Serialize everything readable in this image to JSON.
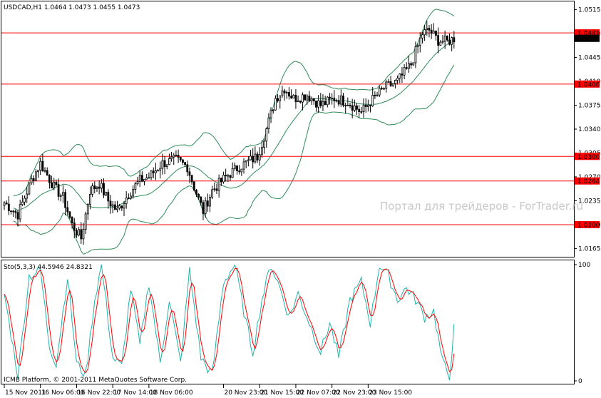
{
  "chart_data": [
    {
      "type": "candlestick",
      "header": "USDCAD,H1  1.0464 1.0473 1.0455 1.0473",
      "symbol": "USDCAD",
      "timeframe": "H1",
      "ohlc_last": {
        "open": 1.0464,
        "high": 1.0473,
        "low": 1.0455,
        "close": 1.0473
      },
      "watermark": "Портал для трейдеров - ForTrader.ru",
      "y_ticks": [
        "1.0515",
        "1.0480",
        "1.0445",
        "1.0410",
        "1.0375",
        "1.0340",
        "1.0305",
        "1.0270",
        "1.0235",
        "1.0200",
        "1.0165"
      ],
      "ylim": [
        1.0155,
        1.0525
      ],
      "horizontal_levels": [
        {
          "value": 1.0481,
          "label": "1.0481"
        },
        {
          "value": 1.0406,
          "label": "1.0406"
        },
        {
          "value": 1.03,
          "label": "1.0300"
        },
        {
          "value": 1.0264,
          "label": "1.0264"
        },
        {
          "value": 1.02,
          "label": "1.0200"
        }
      ],
      "current_price_label": "1.0473",
      "bollinger_bands": true,
      "price_anchors": [
        [
          0,
          1.0232
        ],
        [
          6,
          1.0215
        ],
        [
          12,
          1.0265
        ],
        [
          16,
          1.029
        ],
        [
          22,
          1.0255
        ],
        [
          26,
          1.024
        ],
        [
          30,
          1.02
        ],
        [
          34,
          1.018
        ],
        [
          38,
          1.025
        ],
        [
          42,
          1.026
        ],
        [
          46,
          1.0235
        ],
        [
          50,
          1.022
        ],
        [
          55,
          1.0245
        ],
        [
          60,
          1.0265
        ],
        [
          64,
          1.027
        ],
        [
          70,
          1.029
        ],
        [
          76,
          1.0295
        ],
        [
          81,
          1.0285
        ],
        [
          84,
          1.0255
        ],
        [
          88,
          1.022
        ],
        [
          92,
          1.025
        ],
        [
          98,
          1.027
        ],
        [
          104,
          1.0285
        ],
        [
          112,
          1.03
        ],
        [
          116,
          1.034
        ],
        [
          120,
          1.0385
        ],
        [
          124,
          1.04
        ],
        [
          128,
          1.0385
        ],
        [
          134,
          1.039
        ],
        [
          140,
          1.0375
        ],
        [
          146,
          1.0385
        ],
        [
          152,
          1.038
        ],
        [
          158,
          1.0365
        ],
        [
          162,
          1.038
        ],
        [
          168,
          1.04
        ],
        [
          174,
          1.041
        ],
        [
          180,
          1.0435
        ],
        [
          185,
          1.048
        ],
        [
          188,
          1.0485
        ],
        [
          192,
          1.047
        ],
        [
          196,
          1.0468
        ],
        [
          199,
          1.0473
        ]
      ]
    },
    {
      "type": "line",
      "header": "Sto(5,3,3) 44.5946 24.8321",
      "name": "Sto(5,3,3)",
      "main_value": 44.5946,
      "signal_value": 24.8321,
      "ylim": [
        0,
        100
      ],
      "y_ticks": [
        "100",
        "0"
      ],
      "main_anchors": [
        [
          0,
          75
        ],
        [
          6,
          5
        ],
        [
          11,
          90
        ],
        [
          16,
          95
        ],
        [
          20,
          30
        ],
        [
          23,
          15
        ],
        [
          28,
          90
        ],
        [
          32,
          15
        ],
        [
          36,
          5
        ],
        [
          40,
          70
        ],
        [
          43,
          100
        ],
        [
          48,
          20
        ],
        [
          52,
          12
        ],
        [
          56,
          80
        ],
        [
          60,
          30
        ],
        [
          64,
          85
        ],
        [
          69,
          15
        ],
        [
          73,
          70
        ],
        [
          78,
          15
        ],
        [
          82,
          95
        ],
        [
          87,
          20
        ],
        [
          92,
          5
        ],
        [
          97,
          85
        ],
        [
          102,
          100
        ],
        [
          107,
          50
        ],
        [
          110,
          25
        ],
        [
          114,
          70
        ],
        [
          118,
          100
        ],
        [
          122,
          80
        ],
        [
          126,
          55
        ],
        [
          130,
          75
        ],
        [
          135,
          50
        ],
        [
          140,
          25
        ],
        [
          144,
          50
        ],
        [
          148,
          20
        ],
        [
          153,
          70
        ],
        [
          158,
          85
        ],
        [
          162,
          50
        ],
        [
          166,
          100
        ],
        [
          170,
          90
        ],
        [
          174,
          70
        ],
        [
          178,
          80
        ],
        [
          182,
          70
        ],
        [
          186,
          55
        ],
        [
          190,
          60
        ],
        [
          194,
          15
        ],
        [
          197,
          5
        ],
        [
          199,
          44.6
        ]
      ],
      "time_labels": [
        {
          "index": 0,
          "label": "15 Nov 2011"
        },
        {
          "index": 16,
          "label": "16 Nov 06:00"
        },
        {
          "index": 32,
          "label": "16 Nov 22:00"
        },
        {
          "index": 48,
          "label": "17 Nov 14:00"
        },
        {
          "index": 64,
          "label": "18 Nov 06:00"
        },
        {
          "index": 97,
          "label": "20 Nov 23:00"
        },
        {
          "index": 113,
          "label": "21 Nov 15:00"
        },
        {
          "index": 129,
          "label": "22 Nov 07:00"
        },
        {
          "index": 145,
          "label": "22 Nov 23:00"
        },
        {
          "index": 161,
          "label": "23 Nov 15:00"
        }
      ],
      "bar_count": 200
    }
  ],
  "footer": "ICMB Platform, © 2001-2011 MetaQuotes Software Corp.",
  "colors": {
    "up_down_candle": "#000000",
    "level_line": "#ff0000",
    "level_label_bg": "#ff0000",
    "current_label_bg": "#000000",
    "bands": "#2e8b57",
    "sto_main": "#20b2aa",
    "sto_signal": "#ff0000"
  }
}
